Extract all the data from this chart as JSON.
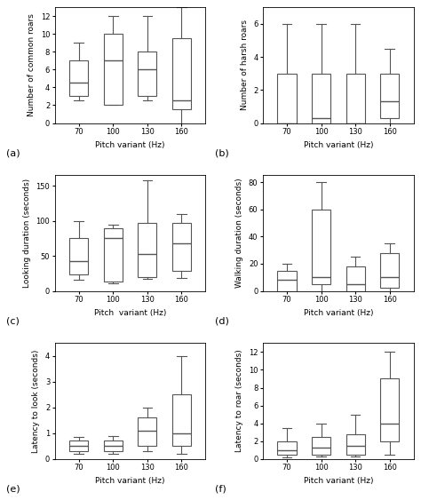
{
  "subplots": [
    {
      "label": "(a)",
      "ylabel": "Number of common roars",
      "xlabel": "Pitch variant (Hz)",
      "categories": [
        70,
        100,
        130,
        160
      ],
      "boxes": [
        {
          "q1": 3.0,
          "median": 4.5,
          "q3": 7.0,
          "whislo": 2.5,
          "whishi": 9.0
        },
        {
          "q1": 2.0,
          "median": 7.0,
          "q3": 10.0,
          "whislo": 2.0,
          "whishi": 12.0
        },
        {
          "q1": 3.0,
          "median": 6.0,
          "q3": 8.0,
          "whislo": 2.5,
          "whishi": 12.0
        },
        {
          "q1": 1.5,
          "median": 2.5,
          "q3": 9.5,
          "whislo": 0.0,
          "whishi": 13.0
        }
      ],
      "ylim": [
        0,
        13
      ],
      "yticks": [
        0,
        2,
        4,
        6,
        8,
        10,
        12
      ]
    },
    {
      "label": "(b)",
      "ylabel": "Number of harsh roars",
      "xlabel": "Pitch variant (Hz)",
      "categories": [
        70,
        100,
        130,
        160
      ],
      "boxes": [
        {
          "q1": 0.0,
          "median": 0.0,
          "q3": 3.0,
          "whislo": 0.0,
          "whishi": 6.0
        },
        {
          "q1": 0.0,
          "median": 0.3,
          "q3": 3.0,
          "whislo": 0.0,
          "whishi": 6.0
        },
        {
          "q1": 0.0,
          "median": 0.0,
          "q3": 3.0,
          "whislo": 0.0,
          "whishi": 6.0
        },
        {
          "q1": 0.3,
          "median": 1.3,
          "q3": 3.0,
          "whislo": 0.0,
          "whishi": 4.5
        }
      ],
      "ylim": [
        0,
        7
      ],
      "yticks": [
        0,
        2,
        4,
        6
      ]
    },
    {
      "label": "(c)",
      "ylabel": "Looking duration (seconds)",
      "xlabel": "Pitch  variant (Hz)",
      "categories": [
        70,
        100,
        130,
        160
      ],
      "boxes": [
        {
          "q1": 23.0,
          "median": 42.0,
          "q3": 75.0,
          "whislo": 16.0,
          "whishi": 100.0
        },
        {
          "q1": 13.0,
          "median": 75.0,
          "q3": 90.0,
          "whislo": 11.0,
          "whishi": 95.0
        },
        {
          "q1": 20.0,
          "median": 53.0,
          "q3": 97.0,
          "whislo": 17.0,
          "whishi": 158.0
        },
        {
          "q1": 28.0,
          "median": 68.0,
          "q3": 97.0,
          "whislo": 18.0,
          "whishi": 110.0
        }
      ],
      "ylim": [
        0,
        165
      ],
      "yticks": [
        0,
        50,
        100,
        150
      ]
    },
    {
      "label": "(d)",
      "ylabel": "Walking duration (seconds)",
      "xlabel": "Pitch variant (Hz)",
      "categories": [
        70,
        100,
        130,
        160
      ],
      "boxes": [
        {
          "q1": 0.0,
          "median": 8.0,
          "q3": 15.0,
          "whislo": 0.0,
          "whishi": 20.0
        },
        {
          "q1": 5.0,
          "median": 10.0,
          "q3": 60.0,
          "whislo": 0.0,
          "whishi": 80.0
        },
        {
          "q1": 0.0,
          "median": 5.0,
          "q3": 18.0,
          "whislo": 0.0,
          "whishi": 25.0
        },
        {
          "q1": 2.0,
          "median": 10.0,
          "q3": 28.0,
          "whislo": 0.0,
          "whishi": 35.0
        }
      ],
      "ylim": [
        0,
        85
      ],
      "yticks": [
        0,
        20,
        40,
        60,
        80
      ]
    },
    {
      "label": "(e)",
      "ylabel": "Latency to look (seconds)",
      "xlabel": "Pitch variant (Hz)",
      "categories": [
        70,
        100,
        130,
        160
      ],
      "boxes": [
        {
          "q1": 0.3,
          "median": 0.5,
          "q3": 0.7,
          "whislo": 0.2,
          "whishi": 0.85
        },
        {
          "q1": 0.3,
          "median": 0.5,
          "q3": 0.7,
          "whislo": 0.2,
          "whishi": 0.9
        },
        {
          "q1": 0.5,
          "median": 1.1,
          "q3": 1.6,
          "whislo": 0.3,
          "whishi": 2.0
        },
        {
          "q1": 0.5,
          "median": 1.0,
          "q3": 2.5,
          "whislo": 0.2,
          "whishi": 4.0
        }
      ],
      "ylim": [
        0,
        4.5
      ],
      "yticks": [
        0.0,
        1.0,
        2.0,
        3.0,
        4.0
      ]
    },
    {
      "label": "(f)",
      "ylabel": "Latency to roar (seconds)",
      "xlabel": "Pitch variant (Hz)",
      "categories": [
        70,
        100,
        130,
        160
      ],
      "boxes": [
        {
          "q1": 0.5,
          "median": 1.0,
          "q3": 2.0,
          "whislo": 0.2,
          "whishi": 3.5
        },
        {
          "q1": 0.5,
          "median": 1.3,
          "q3": 2.5,
          "whislo": 0.3,
          "whishi": 4.0
        },
        {
          "q1": 0.5,
          "median": 1.5,
          "q3": 2.8,
          "whislo": 0.3,
          "whishi": 5.0
        },
        {
          "q1": 2.0,
          "median": 4.0,
          "q3": 9.0,
          "whislo": 0.5,
          "whishi": 12.0
        }
      ],
      "ylim": [
        0,
        13
      ],
      "yticks": [
        0,
        2,
        4,
        6,
        8,
        10,
        12
      ]
    }
  ],
  "box_width": 0.55,
  "box_facecolor": "white",
  "box_edgecolor": "#555555",
  "median_color": "#555555",
  "whisker_color": "#555555",
  "cap_color": "#555555",
  "background_color": "white",
  "figsize": [
    4.74,
    5.63
  ],
  "dpi": 100,
  "ylabel_fontsize": 6.5,
  "xlabel_fontsize": 6.5,
  "tick_fontsize": 6,
  "label_fontsize": 8
}
